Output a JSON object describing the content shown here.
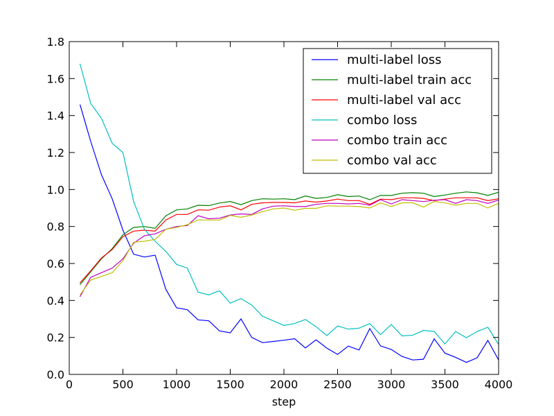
{
  "chart_data": {
    "type": "line",
    "title": "",
    "xlabel": "step",
    "ylabel": "",
    "xlim": [
      0,
      4000
    ],
    "ylim": [
      0.0,
      1.8
    ],
    "xticks": [
      0,
      500,
      1000,
      1500,
      2000,
      2500,
      3000,
      3500,
      4000
    ],
    "yticks": [
      0.0,
      0.2,
      0.4,
      0.6,
      0.8,
      1.0,
      1.2,
      1.4,
      1.6,
      1.8
    ],
    "ytick_labels": [
      "0.0",
      "0.2",
      "0.4",
      "0.6",
      "0.8",
      "1.0",
      "1.2",
      "1.4",
      "1.6",
      "1.8"
    ],
    "grid": false,
    "legend_position": "top-right",
    "x": [
      100,
      200,
      300,
      400,
      500,
      600,
      700,
      800,
      900,
      1000,
      1100,
      1200,
      1300,
      1400,
      1500,
      1600,
      1700,
      1800,
      1900,
      2000,
      2100,
      2200,
      2300,
      2400,
      2500,
      2600,
      2700,
      2800,
      2900,
      3000,
      3100,
      3200,
      3300,
      3400,
      3500,
      3600,
      3700,
      3800,
      3900,
      4000
    ],
    "series": [
      {
        "name": "multi-label loss",
        "color": "#0000ff",
        "values": [
          1.46,
          1.26,
          1.08,
          0.95,
          0.78,
          0.65,
          0.635,
          0.645,
          0.46,
          0.36,
          0.35,
          0.295,
          0.29,
          0.235,
          0.225,
          0.3,
          0.2,
          0.172,
          0.178,
          0.185,
          0.193,
          0.143,
          0.187,
          0.142,
          0.108,
          0.153,
          0.132,
          0.248,
          0.154,
          0.135,
          0.097,
          0.078,
          0.082,
          0.192,
          0.115,
          0.092,
          0.065,
          0.09,
          0.184,
          0.078
        ]
      },
      {
        "name": "multi-label train acc",
        "color": "#008000",
        "values": [
          0.485,
          0.555,
          0.625,
          0.68,
          0.755,
          0.795,
          0.8,
          0.79,
          0.858,
          0.89,
          0.895,
          0.915,
          0.913,
          0.927,
          0.935,
          0.918,
          0.94,
          0.95,
          0.948,
          0.95,
          0.945,
          0.965,
          0.952,
          0.957,
          0.972,
          0.962,
          0.965,
          0.945,
          0.968,
          0.968,
          0.98,
          0.983,
          0.98,
          0.962,
          0.97,
          0.98,
          0.987,
          0.982,
          0.968,
          0.985
        ]
      },
      {
        "name": "multi-label val acc",
        "color": "#ff0000",
        "values": [
          0.495,
          0.56,
          0.63,
          0.675,
          0.745,
          0.775,
          0.78,
          0.775,
          0.835,
          0.865,
          0.865,
          0.89,
          0.888,
          0.905,
          0.912,
          0.89,
          0.92,
          0.928,
          0.93,
          0.93,
          0.928,
          0.938,
          0.932,
          0.938,
          0.948,
          0.94,
          0.94,
          0.92,
          0.948,
          0.945,
          0.955,
          0.955,
          0.952,
          0.94,
          0.948,
          0.955,
          0.955,
          0.955,
          0.94,
          0.95
        ]
      },
      {
        "name": "combo loss",
        "color": "#00bfbf",
        "values": [
          1.68,
          1.465,
          1.385,
          1.25,
          1.2,
          0.935,
          0.785,
          0.72,
          0.665,
          0.595,
          0.575,
          0.445,
          0.43,
          0.452,
          0.385,
          0.41,
          0.375,
          0.315,
          0.29,
          0.265,
          0.275,
          0.297,
          0.258,
          0.21,
          0.262,
          0.245,
          0.25,
          0.275,
          0.215,
          0.27,
          0.208,
          0.212,
          0.238,
          0.232,
          0.165,
          0.232,
          0.198,
          0.232,
          0.255,
          0.162
        ]
      },
      {
        "name": "combo train acc",
        "color": "#bf00bf",
        "values": [
          0.42,
          0.525,
          0.55,
          0.575,
          0.625,
          0.71,
          0.75,
          0.76,
          0.785,
          0.8,
          0.805,
          0.858,
          0.842,
          0.845,
          0.862,
          0.868,
          0.865,
          0.895,
          0.91,
          0.912,
          0.908,
          0.908,
          0.92,
          0.925,
          0.925,
          0.922,
          0.925,
          0.915,
          0.945,
          0.922,
          0.945,
          0.94,
          0.935,
          0.942,
          0.945,
          0.925,
          0.945,
          0.94,
          0.925,
          0.943
        ]
      },
      {
        "name": "combo val acc",
        "color": "#bfbf00",
        "values": [
          0.43,
          0.51,
          0.53,
          0.55,
          0.615,
          0.715,
          0.72,
          0.73,
          0.785,
          0.795,
          0.81,
          0.835,
          0.835,
          0.835,
          0.86,
          0.85,
          0.862,
          0.88,
          0.895,
          0.9,
          0.888,
          0.898,
          0.898,
          0.912,
          0.91,
          0.91,
          0.908,
          0.9,
          0.928,
          0.908,
          0.928,
          0.928,
          0.905,
          0.935,
          0.928,
          0.915,
          0.925,
          0.925,
          0.9,
          0.925
        ]
      }
    ]
  }
}
